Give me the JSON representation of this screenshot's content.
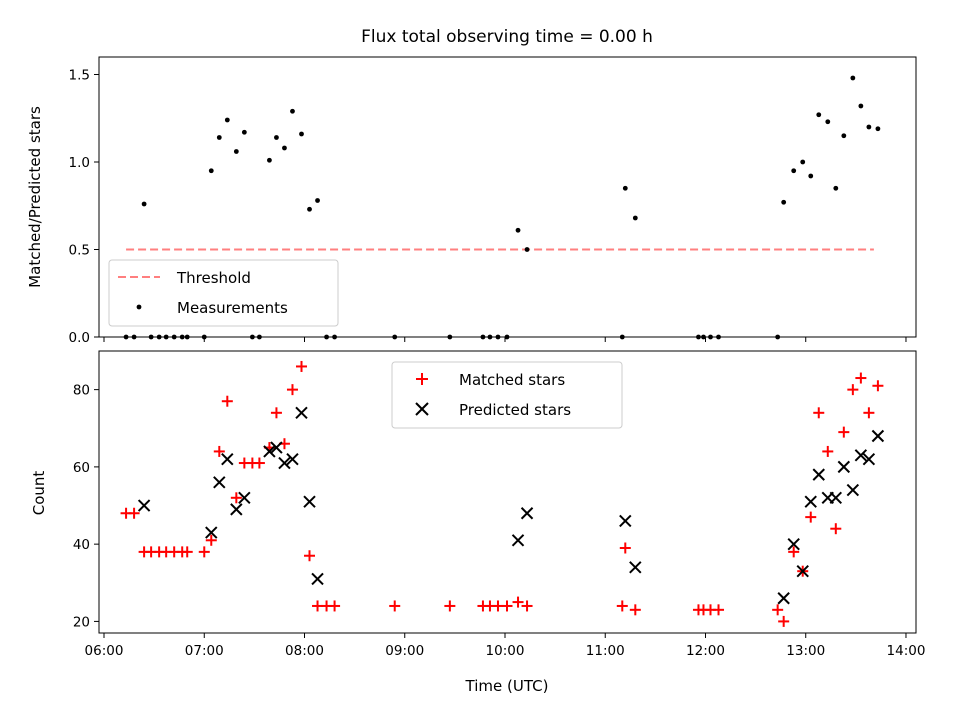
{
  "chart_data": [
    {
      "type": "scatter",
      "title": "Flux total observing time = 0.00 h",
      "xlabel": "",
      "ylabel": "Matched/Predicted stars",
      "x_unit": "hours UTC",
      "xlim": [
        5.95,
        14.1
      ],
      "ylim": [
        0,
        1.6
      ],
      "yticks": [
        0.0,
        0.5,
        1.0,
        1.5
      ],
      "ytick_labels": [
        "0.0",
        "0.5",
        "1.0",
        "1.5"
      ],
      "legend": {
        "placement": "lower-left",
        "entries": [
          "Threshold",
          "Measurements"
        ]
      },
      "threshold": {
        "name": "Threshold",
        "value": 0.5,
        "x_range": [
          6.22,
          13.68
        ],
        "color": "#ff7f7f"
      },
      "series": [
        {
          "name": "Measurements",
          "color": "#000000",
          "marker": "dot",
          "points": [
            [
              6.22,
              0.0
            ],
            [
              6.3,
              0.0
            ],
            [
              6.4,
              0.76
            ],
            [
              6.47,
              0.0
            ],
            [
              6.55,
              0.0
            ],
            [
              6.62,
              0.0
            ],
            [
              6.7,
              0.0
            ],
            [
              6.78,
              0.0
            ],
            [
              6.83,
              0.0
            ],
            [
              7.0,
              0.0
            ],
            [
              7.07,
              0.95
            ],
            [
              7.15,
              1.14
            ],
            [
              7.23,
              1.24
            ],
            [
              7.32,
              1.06
            ],
            [
              7.4,
              1.17
            ],
            [
              7.48,
              0.0
            ],
            [
              7.55,
              0.0
            ],
            [
              7.65,
              1.01
            ],
            [
              7.72,
              1.14
            ],
            [
              7.8,
              1.08
            ],
            [
              7.88,
              1.29
            ],
            [
              7.97,
              1.16
            ],
            [
              8.05,
              0.73
            ],
            [
              8.13,
              0.78
            ],
            [
              8.22,
              0.0
            ],
            [
              8.3,
              0.0
            ],
            [
              8.9,
              0.0
            ],
            [
              9.45,
              0.0
            ],
            [
              9.78,
              0.0
            ],
            [
              9.85,
              0.0
            ],
            [
              9.93,
              0.0
            ],
            [
              10.02,
              0.0
            ],
            [
              10.13,
              0.61
            ],
            [
              10.22,
              0.5
            ],
            [
              11.17,
              0.0
            ],
            [
              11.2,
              0.85
            ],
            [
              11.3,
              0.68
            ],
            [
              11.93,
              0.0
            ],
            [
              11.98,
              0.0
            ],
            [
              12.05,
              0.0
            ],
            [
              12.13,
              0.0
            ],
            [
              12.72,
              0.0
            ],
            [
              12.78,
              0.77
            ],
            [
              12.88,
              0.95
            ],
            [
              12.97,
              1.0
            ],
            [
              13.05,
              0.92
            ],
            [
              13.13,
              1.27
            ],
            [
              13.22,
              1.23
            ],
            [
              13.3,
              0.85
            ],
            [
              13.38,
              1.15
            ],
            [
              13.47,
              1.48
            ],
            [
              13.55,
              1.32
            ],
            [
              13.63,
              1.2
            ],
            [
              13.72,
              1.19
            ]
          ]
        }
      ]
    },
    {
      "type": "scatter",
      "title": "",
      "xlabel": "Time (UTC)",
      "ylabel": "Count",
      "x_unit": "hours UTC",
      "xlim": [
        5.95,
        14.1
      ],
      "ylim": [
        17,
        90
      ],
      "xticks": [
        6,
        7,
        8,
        9,
        10,
        11,
        12,
        13,
        14
      ],
      "xtick_labels": [
        "06:00",
        "07:00",
        "08:00",
        "09:00",
        "10:00",
        "11:00",
        "12:00",
        "13:00",
        "14:00"
      ],
      "yticks": [
        20,
        40,
        60,
        80
      ],
      "ytick_labels": [
        "20",
        "40",
        "60",
        "80"
      ],
      "legend": {
        "placement": "upper-center",
        "entries": [
          "Matched stars",
          "Predicted stars"
        ]
      },
      "series": [
        {
          "name": "Matched stars",
          "color": "#ff0000",
          "marker": "plus",
          "points": [
            [
              6.22,
              48
            ],
            [
              6.3,
              48
            ],
            [
              6.4,
              38
            ],
            [
              6.47,
              38
            ],
            [
              6.55,
              38
            ],
            [
              6.62,
              38
            ],
            [
              6.7,
              38
            ],
            [
              6.78,
              38
            ],
            [
              6.83,
              38
            ],
            [
              7.0,
              38
            ],
            [
              7.07,
              41
            ],
            [
              7.15,
              64
            ],
            [
              7.23,
              77
            ],
            [
              7.32,
              52
            ],
            [
              7.4,
              61
            ],
            [
              7.48,
              61
            ],
            [
              7.55,
              61
            ],
            [
              7.65,
              65
            ],
            [
              7.72,
              74
            ],
            [
              7.8,
              66
            ],
            [
              7.88,
              80
            ],
            [
              7.97,
              86
            ],
            [
              8.05,
              37
            ],
            [
              8.13,
              24
            ],
            [
              8.22,
              24
            ],
            [
              8.3,
              24
            ],
            [
              8.9,
              24
            ],
            [
              9.45,
              24
            ],
            [
              9.78,
              24
            ],
            [
              9.85,
              24
            ],
            [
              9.93,
              24
            ],
            [
              10.02,
              24
            ],
            [
              10.13,
              25
            ],
            [
              10.22,
              24
            ],
            [
              11.17,
              24
            ],
            [
              11.2,
              39
            ],
            [
              11.3,
              23
            ],
            [
              11.93,
              23
            ],
            [
              11.98,
              23
            ],
            [
              12.05,
              23
            ],
            [
              12.13,
              23
            ],
            [
              12.72,
              23
            ],
            [
              12.78,
              20
            ],
            [
              12.88,
              38
            ],
            [
              12.97,
              33
            ],
            [
              13.05,
              47
            ],
            [
              13.13,
              74
            ],
            [
              13.22,
              64
            ],
            [
              13.3,
              44
            ],
            [
              13.38,
              69
            ],
            [
              13.47,
              80
            ],
            [
              13.55,
              83
            ],
            [
              13.63,
              74
            ],
            [
              13.72,
              81
            ]
          ]
        },
        {
          "name": "Predicted stars",
          "color": "#000000",
          "marker": "x",
          "points": [
            [
              6.4,
              50
            ],
            [
              7.07,
              43
            ],
            [
              7.15,
              56
            ],
            [
              7.23,
              62
            ],
            [
              7.32,
              49
            ],
            [
              7.4,
              52
            ],
            [
              7.65,
              64
            ],
            [
              7.72,
              65
            ],
            [
              7.8,
              61
            ],
            [
              7.88,
              62
            ],
            [
              7.97,
              74
            ],
            [
              8.05,
              51
            ],
            [
              8.13,
              31
            ],
            [
              10.13,
              41
            ],
            [
              10.22,
              48
            ],
            [
              11.2,
              46
            ],
            [
              11.3,
              34
            ],
            [
              12.78,
              26
            ],
            [
              12.88,
              40
            ],
            [
              12.97,
              33
            ],
            [
              13.05,
              51
            ],
            [
              13.13,
              58
            ],
            [
              13.22,
              52
            ],
            [
              13.3,
              52
            ],
            [
              13.38,
              60
            ],
            [
              13.47,
              54
            ],
            [
              13.55,
              63
            ],
            [
              13.63,
              62
            ],
            [
              13.72,
              68
            ]
          ]
        }
      ]
    }
  ]
}
